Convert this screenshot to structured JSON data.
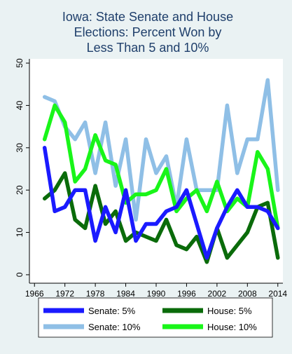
{
  "chart_data": {
    "type": "line",
    "title_lines": [
      "Iowa: State Senate and House",
      "Elections: Percent Won by",
      "Less Than 5 and 10%"
    ],
    "xlabel": "",
    "ylabel": "",
    "xlim": [
      1965,
      2015
    ],
    "ylim": [
      -2,
      51
    ],
    "x_ticks": [
      1966,
      1972,
      1978,
      1984,
      1990,
      1996,
      2002,
      2008,
      2014
    ],
    "y_ticks": [
      0,
      10,
      20,
      30,
      40,
      50
    ],
    "grid": false,
    "legend_position": "bottom",
    "series": [
      {
        "name": "Senate: 5%",
        "color": "#1a1aff",
        "x": [
          1968,
          1970,
          1972,
          1974,
          1976,
          1978,
          1980,
          1982,
          1984,
          1986,
          1988,
          1990,
          1992,
          1994,
          1996,
          1998,
          2000,
          2002,
          2004,
          2006,
          2008,
          2010,
          2012,
          2014
        ],
        "values": [
          30,
          15,
          16,
          20,
          20,
          8,
          16,
          10,
          20,
          8,
          12,
          12,
          15,
          16,
          20,
          12,
          4,
          11,
          16,
          20,
          16,
          16,
          15,
          11
        ]
      },
      {
        "name": "House: 5%",
        "color": "#0a6b0a",
        "x": [
          1968,
          1970,
          1972,
          1974,
          1976,
          1978,
          1980,
          1982,
          1984,
          1986,
          1988,
          1990,
          1992,
          1994,
          1996,
          1998,
          2000,
          2002,
          2004,
          2006,
          2008,
          2010,
          2012,
          2014
        ],
        "values": [
          18,
          20,
          24,
          13,
          11,
          21,
          12,
          15,
          8,
          10,
          9,
          8,
          13,
          7,
          6,
          9,
          3,
          11,
          4,
          7,
          10,
          16,
          17,
          4
        ]
      },
      {
        "name": "Senate: 10%",
        "color": "#8fbfe6",
        "x": [
          1968,
          1970,
          1972,
          1974,
          1976,
          1978,
          1980,
          1982,
          1984,
          1986,
          1988,
          1990,
          1992,
          1994,
          1996,
          1998,
          2000,
          2002,
          2004,
          2006,
          2008,
          2010,
          2012,
          2014
        ],
        "values": [
          42,
          41,
          35,
          32,
          36,
          24,
          36,
          21,
          32,
          13,
          32,
          24,
          28,
          16,
          32,
          20,
          20,
          20,
          40,
          24,
          32,
          32,
          46,
          20
        ]
      },
      {
        "name": "House: 10%",
        "color": "#19f519",
        "x": [
          1968,
          1970,
          1972,
          1974,
          1976,
          1978,
          1980,
          1982,
          1984,
          1986,
          1988,
          1990,
          1992,
          1994,
          1996,
          1998,
          2000,
          2002,
          2004,
          2006,
          2008,
          2010,
          2012,
          2014
        ],
        "values": [
          32,
          40,
          36,
          22,
          25,
          33,
          27,
          26,
          17,
          19,
          19,
          20,
          25,
          15,
          18,
          20,
          15,
          22,
          15,
          18,
          16,
          29,
          25,
          11
        ]
      }
    ]
  }
}
